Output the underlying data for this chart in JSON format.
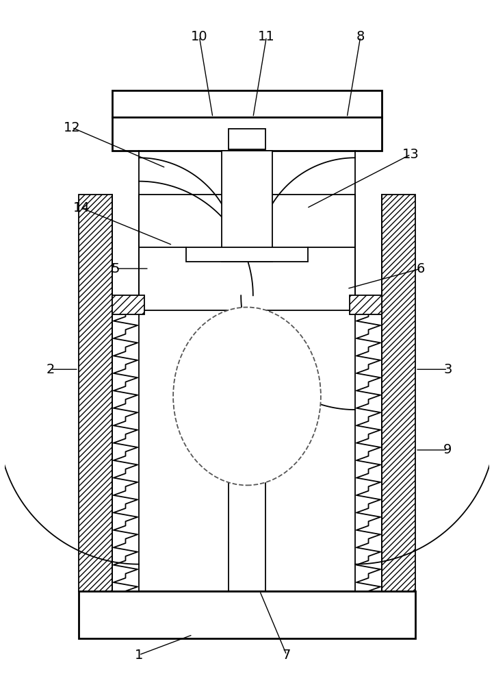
{
  "bg_color": "#ffffff",
  "line_color": "#000000",
  "lw": 1.3,
  "lw_thick": 2.0,
  "figsize": [
    7.22,
    10.0
  ],
  "dpi": 100
}
